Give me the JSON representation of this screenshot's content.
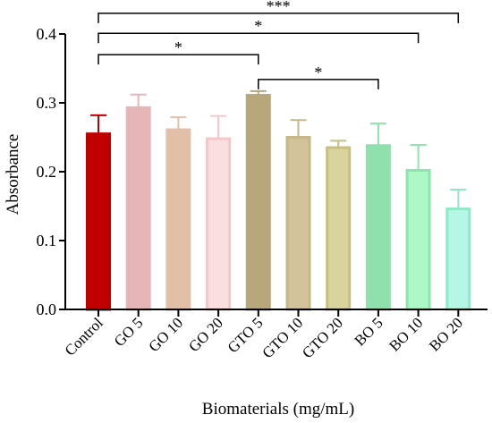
{
  "chart_data": {
    "type": "bar",
    "title": "",
    "xlabel": "Biomaterials (mg/mL)",
    "ylabel": "Absorbance",
    "ylim": [
      0,
      0.4
    ],
    "yticks": [
      0.0,
      0.1,
      0.2,
      0.3,
      0.4
    ],
    "ytick_labels": [
      "0.0",
      "0.1",
      "0.2",
      "0.3",
      "0.4"
    ],
    "categories": [
      "Control",
      "GO 5",
      "GO 10",
      "GO 20",
      "GTO 5",
      "GTO 10",
      "GTO 20",
      "BO 5",
      "BO 10",
      "BO 20"
    ],
    "values": [
      0.255,
      0.293,
      0.261,
      0.248,
      0.311,
      0.25,
      0.235,
      0.238,
      0.202,
      0.146
    ],
    "errors": [
      0.027,
      0.019,
      0.018,
      0.033,
      0.006,
      0.025,
      0.01,
      0.032,
      0.037,
      0.028
    ],
    "fill_colors": [
      "#c00000",
      "#e5b5b8",
      "#e2c0a8",
      "#fbdedf",
      "#b7a77a",
      "#d2c39a",
      "#d9d49e",
      "#8fe0ac",
      "#aef7c6",
      "#b6f6e6"
    ],
    "edge_colors": [
      "#c00000",
      "#e5b5b8",
      "#e2c0a8",
      "#f3c7c9",
      "#b7a77a",
      "#c7b788",
      "#c8bf7e",
      "#8fe0ac",
      "#8be5ad",
      "#8fe8c7"
    ],
    "grid": false,
    "legend": "none",
    "significance": [
      {
        "from": "Control",
        "to": "BO 20",
        "label": "***",
        "y": 0.43
      },
      {
        "from": "Control",
        "to": "BO 10",
        "label": "*",
        "y": 0.401
      },
      {
        "from": "Control",
        "to": "GTO 5",
        "label": "*",
        "y": 0.37
      },
      {
        "from": "GTO 5",
        "to": "BO 5",
        "label": "*",
        "y": 0.334
      }
    ]
  }
}
